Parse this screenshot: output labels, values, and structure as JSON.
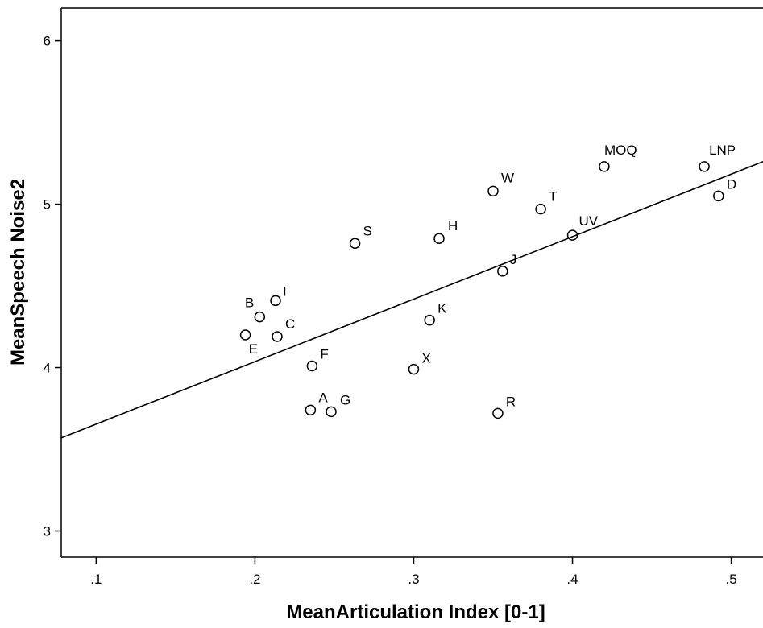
{
  "chart_data": {
    "type": "scatter",
    "xlabel": "MeanArticulation Index [0-1]",
    "ylabel": "MeanSpeech Noise2",
    "xlim": [
      0.078,
      0.52
    ],
    "ylim": [
      2.84,
      6.2
    ],
    "x_ticks": [
      0.1,
      0.2,
      0.3,
      0.4,
      0.5
    ],
    "x_tick_labels": [
      ".1",
      ".2",
      ".3",
      ".4",
      ".5"
    ],
    "y_ticks": [
      3,
      4,
      5,
      6
    ],
    "y_tick_labels": [
      "3",
      "4",
      "5",
      "6"
    ],
    "grid": false,
    "legend": "none",
    "marker": "hollow-circle",
    "colors": {
      "point_stroke": "#000000",
      "line": "#000000",
      "axis": "#000000"
    },
    "points": [
      {
        "label": "A",
        "x": 0.235,
        "y": 3.74
      },
      {
        "label": "G",
        "x": 0.248,
        "y": 3.73
      },
      {
        "label": "B",
        "x": 0.203,
        "y": 4.31
      },
      {
        "label": "I",
        "x": 0.213,
        "y": 4.41
      },
      {
        "label": "C",
        "x": 0.214,
        "y": 4.19
      },
      {
        "label": "E",
        "x": 0.194,
        "y": 4.2
      },
      {
        "label": "F",
        "x": 0.236,
        "y": 4.01
      },
      {
        "label": "S",
        "x": 0.263,
        "y": 4.76
      },
      {
        "label": "X",
        "x": 0.3,
        "y": 3.99
      },
      {
        "label": "K",
        "x": 0.31,
        "y": 4.29
      },
      {
        "label": "H",
        "x": 0.316,
        "y": 4.79
      },
      {
        "label": "W",
        "x": 0.35,
        "y": 5.08
      },
      {
        "label": "R",
        "x": 0.353,
        "y": 3.72
      },
      {
        "label": "J",
        "x": 0.356,
        "y": 4.59
      },
      {
        "label": "T",
        "x": 0.38,
        "y": 4.97
      },
      {
        "label": "UV",
        "x": 0.4,
        "y": 4.81
      },
      {
        "label": "MOQ",
        "x": 0.42,
        "y": 5.23
      },
      {
        "label": "LNP",
        "x": 0.483,
        "y": 5.23
      },
      {
        "label": "D",
        "x": 0.492,
        "y": 5.05
      }
    ],
    "fit_line": {
      "x": [
        0.078,
        0.52
      ],
      "y": [
        3.57,
        5.26
      ]
    }
  }
}
